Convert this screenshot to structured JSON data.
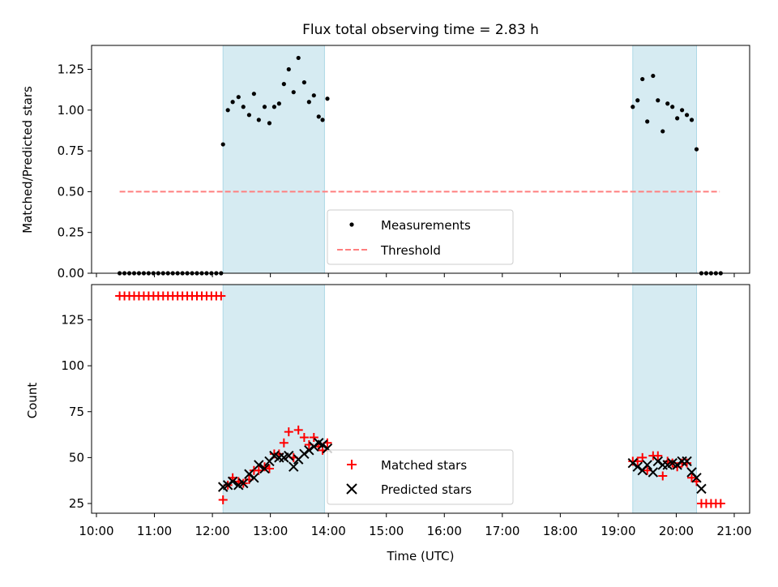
{
  "chart_data": [
    {
      "type": "scatter",
      "title": "Flux total observing time = 2.83 h",
      "xlabel": "",
      "ylabel": "Matched/Predicted stars",
      "xlim": [
        "10:00",
        "21:00"
      ],
      "ylim": [
        0,
        1.4
      ],
      "yticks": [
        "0.00",
        "0.25",
        "0.50",
        "0.75",
        "1.00",
        "1.25"
      ],
      "shaded_intervals": [
        [
          "12:11",
          "13:56"
        ],
        [
          "19:15",
          "20:21"
        ]
      ],
      "legend_position": "lower-center",
      "series": [
        {
          "name": "Measurements",
          "style": "dots",
          "color": "#000000",
          "points": [
            [
              "10:24",
              0
            ],
            [
              "10:29",
              0
            ],
            [
              "10:34",
              0
            ],
            [
              "10:39",
              0
            ],
            [
              "10:44",
              0
            ],
            [
              "10:49",
              0
            ],
            [
              "10:54",
              0
            ],
            [
              "10:59",
              0
            ],
            [
              "11:04",
              0
            ],
            [
              "11:09",
              0
            ],
            [
              "11:14",
              0
            ],
            [
              "11:19",
              0
            ],
            [
              "11:24",
              0
            ],
            [
              "11:29",
              0
            ],
            [
              "11:34",
              0
            ],
            [
              "11:39",
              0
            ],
            [
              "11:44",
              0
            ],
            [
              "11:49",
              0
            ],
            [
              "11:54",
              0
            ],
            [
              "11:59",
              0
            ],
            [
              "12:04",
              0
            ],
            [
              "12:09",
              0
            ],
            [
              "12:11",
              0.79
            ],
            [
              "12:16",
              1.0
            ],
            [
              "12:21",
              1.05
            ],
            [
              "12:27",
              1.08
            ],
            [
              "12:32",
              1.02
            ],
            [
              "12:38",
              0.97
            ],
            [
              "12:43",
              1.1
            ],
            [
              "12:48",
              0.94
            ],
            [
              "12:54",
              1.02
            ],
            [
              "12:59",
              0.92
            ],
            [
              "13:04",
              1.02
            ],
            [
              "13:09",
              1.04
            ],
            [
              "13:14",
              1.16
            ],
            [
              "13:19",
              1.25
            ],
            [
              "13:24",
              1.11
            ],
            [
              "13:29",
              1.32
            ],
            [
              "13:35",
              1.17
            ],
            [
              "13:40",
              1.05
            ],
            [
              "13:45",
              1.09
            ],
            [
              "13:50",
              0.96
            ],
            [
              "13:54",
              0.94
            ],
            [
              "13:59",
              1.07
            ],
            [
              "19:15",
              1.02
            ],
            [
              "19:20",
              1.06
            ],
            [
              "19:25",
              1.19
            ],
            [
              "19:30",
              0.93
            ],
            [
              "19:36",
              1.21
            ],
            [
              "19:41",
              1.06
            ],
            [
              "19:46",
              0.87
            ],
            [
              "19:51",
              1.04
            ],
            [
              "19:56",
              1.02
            ],
            [
              "20:01",
              0.95
            ],
            [
              "20:06",
              1.0
            ],
            [
              "20:11",
              0.97
            ],
            [
              "20:16",
              0.94
            ],
            [
              "20:21",
              0.76
            ],
            [
              "20:26",
              0
            ],
            [
              "20:31",
              0
            ],
            [
              "20:36",
              0
            ],
            [
              "20:41",
              0
            ],
            [
              "20:46",
              0
            ]
          ]
        },
        {
          "name": "Threshold",
          "style": "dashed-line",
          "color": "#ff7f7f",
          "points": [
            [
              "10:24",
              0.5
            ],
            [
              "20:45",
              0.5
            ]
          ]
        }
      ]
    },
    {
      "type": "scatter",
      "title": "",
      "xlabel": "Time (UTC)",
      "ylabel": "Count",
      "xlim": [
        "10:00",
        "21:00"
      ],
      "ylim": [
        19,
        143
      ],
      "xticks": [
        "10:00",
        "11:00",
        "12:00",
        "13:00",
        "14:00",
        "15:00",
        "16:00",
        "17:00",
        "18:00",
        "19:00",
        "20:00",
        "21:00"
      ],
      "yticks": [
        "25",
        "50",
        "75",
        "100",
        "125"
      ],
      "shaded_intervals": [
        [
          "12:11",
          "13:56"
        ],
        [
          "19:15",
          "20:21"
        ]
      ],
      "legend_position": "lower-center",
      "series": [
        {
          "name": "Matched stars",
          "style": "plus",
          "color": "#ff0000",
          "points": [
            [
              "10:24",
              138
            ],
            [
              "10:29",
              138
            ],
            [
              "10:34",
              138
            ],
            [
              "10:39",
              138
            ],
            [
              "10:44",
              138
            ],
            [
              "10:49",
              138
            ],
            [
              "10:54",
              138
            ],
            [
              "10:59",
              138
            ],
            [
              "11:04",
              138
            ],
            [
              "11:09",
              138
            ],
            [
              "11:14",
              138
            ],
            [
              "11:19",
              138
            ],
            [
              "11:24",
              138
            ],
            [
              "11:29",
              138
            ],
            [
              "11:34",
              138
            ],
            [
              "11:39",
              138
            ],
            [
              "11:44",
              138
            ],
            [
              "11:49",
              138
            ],
            [
              "11:54",
              138
            ],
            [
              "11:59",
              138
            ],
            [
              "12:04",
              138
            ],
            [
              "12:09",
              138
            ],
            [
              "12:11",
              27
            ],
            [
              "12:16",
              35
            ],
            [
              "12:21",
              39
            ],
            [
              "12:27",
              37
            ],
            [
              "12:32",
              36
            ],
            [
              "12:38",
              38
            ],
            [
              "12:43",
              43
            ],
            [
              "12:48",
              43
            ],
            [
              "12:54",
              45
            ],
            [
              "12:59",
              44
            ],
            [
              "13:04",
              52
            ],
            [
              "13:09",
              52
            ],
            [
              "13:14",
              58
            ],
            [
              "13:19",
              64
            ],
            [
              "13:24",
              50
            ],
            [
              "13:29",
              65
            ],
            [
              "13:35",
              61
            ],
            [
              "13:40",
              57
            ],
            [
              "13:45",
              61
            ],
            [
              "13:50",
              56
            ],
            [
              "13:54",
              54
            ],
            [
              "13:59",
              58
            ],
            [
              "19:15",
              48
            ],
            [
              "19:20",
              48
            ],
            [
              "19:25",
              50
            ],
            [
              "19:30",
              43
            ],
            [
              "19:36",
              51
            ],
            [
              "19:41",
              51
            ],
            [
              "19:46",
              40
            ],
            [
              "19:51",
              48
            ],
            [
              "19:56",
              47
            ],
            [
              "20:01",
              45
            ],
            [
              "20:06",
              47
            ],
            [
              "20:11",
              47
            ],
            [
              "20:16",
              39
            ],
            [
              "20:21",
              37
            ],
            [
              "20:26",
              25
            ],
            [
              "20:31",
              25
            ],
            [
              "20:36",
              25
            ],
            [
              "20:41",
              25
            ],
            [
              "20:46",
              25
            ]
          ]
        },
        {
          "name": "Predicted stars",
          "style": "cross",
          "color": "#000000",
          "points": [
            [
              "12:11",
              34
            ],
            [
              "12:16",
              35
            ],
            [
              "12:21",
              37
            ],
            [
              "12:27",
              35
            ],
            [
              "12:32",
              36
            ],
            [
              "12:38",
              41
            ],
            [
              "12:43",
              39
            ],
            [
              "12:48",
              46
            ],
            [
              "12:54",
              44
            ],
            [
              "12:59",
              48
            ],
            [
              "13:04",
              51
            ],
            [
              "13:09",
              50
            ],
            [
              "13:14",
              50
            ],
            [
              "13:19",
              51
            ],
            [
              "13:24",
              45
            ],
            [
              "13:29",
              49
            ],
            [
              "13:35",
              52
            ],
            [
              "13:40",
              54
            ],
            [
              "13:45",
              56
            ],
            [
              "13:50",
              58
            ],
            [
              "13:54",
              57
            ],
            [
              "13:59",
              55
            ],
            [
              "19:15",
              47
            ],
            [
              "19:20",
              45
            ],
            [
              "19:25",
              43
            ],
            [
              "19:30",
              46
            ],
            [
              "19:36",
              42
            ],
            [
              "19:41",
              48
            ],
            [
              "19:46",
              46
            ],
            [
              "19:51",
              46
            ],
            [
              "19:56",
              47
            ],
            [
              "20:01",
              46
            ],
            [
              "20:06",
              48
            ],
            [
              "20:11",
              48
            ],
            [
              "20:16",
              42
            ],
            [
              "20:21",
              39
            ],
            [
              "20:26",
              33
            ]
          ]
        }
      ]
    }
  ]
}
